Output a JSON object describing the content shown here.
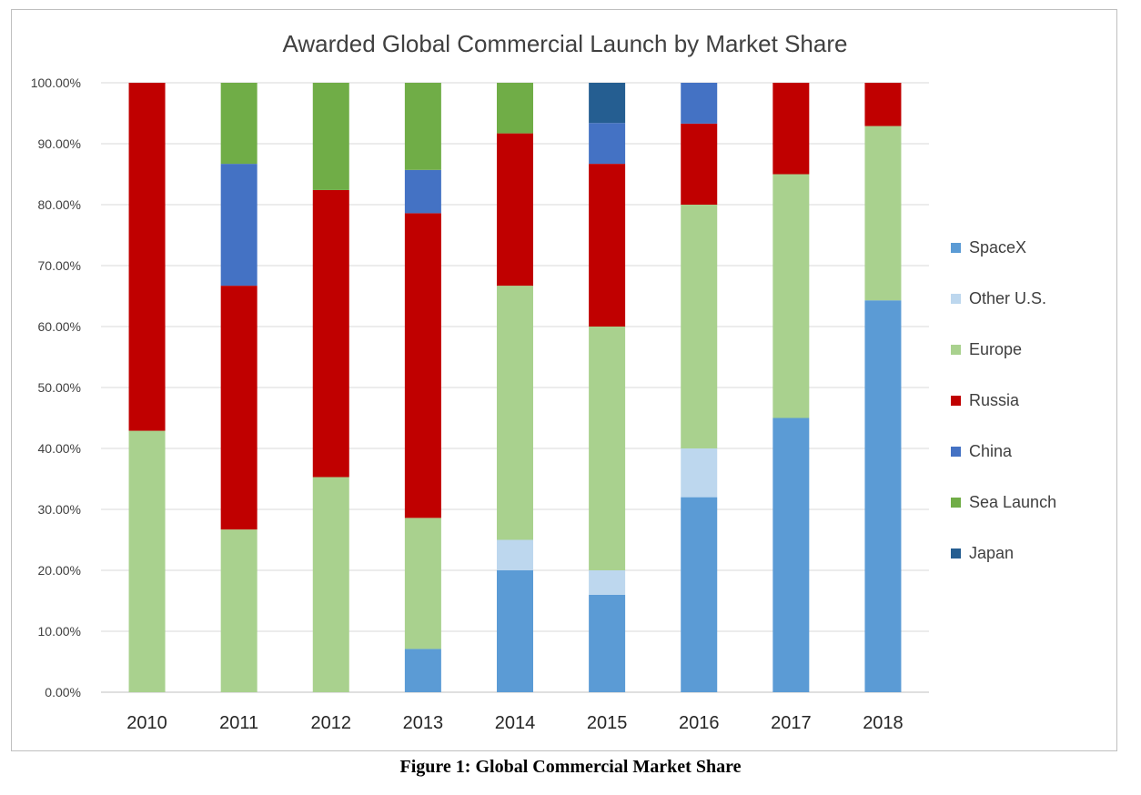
{
  "caption": "Figure 1: Global Commercial Market Share",
  "chart_data": {
    "type": "bar",
    "stacked": true,
    "title": "Awarded Global Commercial Launch by Market Share",
    "xlabel": "",
    "ylabel": "",
    "ylim": [
      0,
      100
    ],
    "y_ticks": [
      "0.00%",
      "10.00%",
      "20.00%",
      "30.00%",
      "40.00%",
      "50.00%",
      "60.00%",
      "70.00%",
      "80.00%",
      "90.00%",
      "100.00%"
    ],
    "grid": true,
    "legend_position": "right",
    "categories": [
      "2010",
      "2011",
      "2012",
      "2013",
      "2014",
      "2015",
      "2016",
      "2017",
      "2018"
    ],
    "series": [
      {
        "name": "SpaceX",
        "color": "#5b9bd5",
        "values": [
          0,
          0,
          0,
          7.1,
          20,
          16,
          32,
          45,
          64.3
        ]
      },
      {
        "name": "Other U.S.",
        "color": "#bdd7ee",
        "values": [
          0,
          0,
          0,
          0,
          5,
          4,
          8,
          0,
          0
        ]
      },
      {
        "name": "Europe",
        "color": "#a9d18e",
        "values": [
          42.9,
          26.7,
          35.3,
          21.5,
          41.7,
          40,
          40,
          40,
          28.6
        ]
      },
      {
        "name": "Russia",
        "color": "#c00000",
        "values": [
          57.1,
          40,
          47.1,
          50,
          25,
          26.7,
          13.3,
          15,
          7.1
        ]
      },
      {
        "name": "China",
        "color": "#4472c4",
        "values": [
          0,
          20,
          0,
          7.1,
          0,
          6.7,
          6.7,
          0,
          0
        ]
      },
      {
        "name": "Sea Launch",
        "color": "#70ad47",
        "values": [
          0,
          13.3,
          17.6,
          14.3,
          8.3,
          0,
          0,
          0,
          0
        ]
      },
      {
        "name": "Japan",
        "color": "#255e91",
        "values": [
          0,
          0,
          0,
          0,
          0,
          6.6,
          0,
          0,
          0
        ]
      }
    ]
  }
}
